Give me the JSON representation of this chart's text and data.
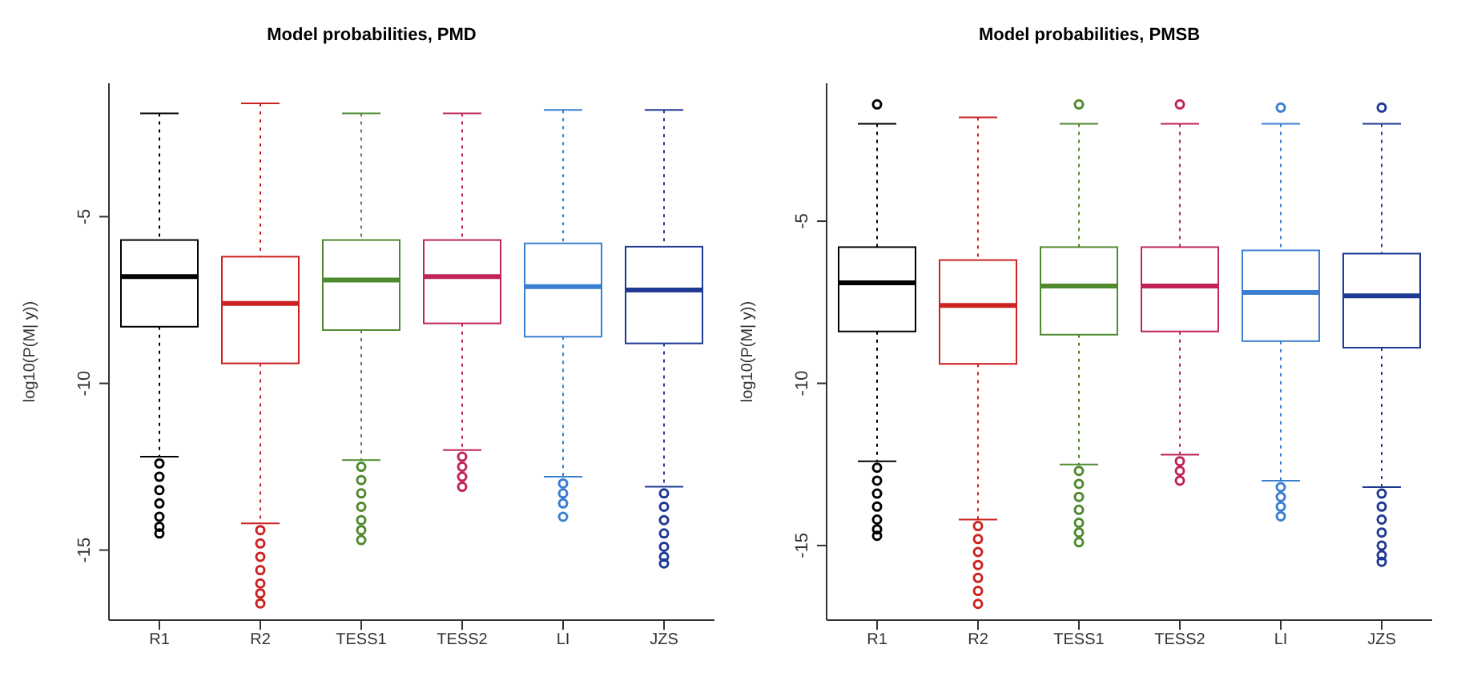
{
  "chart_data": [
    {
      "type": "box",
      "title": "Model probabilities, PMD",
      "ylabel": "log10(P(M| y))",
      "categories": [
        "R1",
        "R2",
        "TESS1",
        "TESS2",
        "LI",
        "JZS"
      ],
      "colors": [
        "#000000",
        "#cc2222",
        "#4f8a2f",
        "#c0245a",
        "#3a7fd0",
        "#1f3a93"
      ],
      "ylim": [
        -17.1,
        -1.0
      ],
      "yticks": [
        -15,
        -10,
        -5
      ],
      "boxes": [
        {
          "low": -1.9,
          "q1": -8.3,
          "median": -6.8,
          "q3": -5.7,
          "high": -12.2,
          "outliers": [
            -12.4,
            -12.8,
            -13.2,
            -13.6,
            -14.0,
            -14.3,
            -14.5
          ]
        },
        {
          "low": -1.6,
          "q1": -9.4,
          "median": -7.6,
          "q3": -6.2,
          "high": -14.2,
          "outliers": [
            -14.4,
            -14.8,
            -15.2,
            -15.6,
            -16.0,
            -16.3,
            -16.6
          ]
        },
        {
          "low": -1.9,
          "q1": -8.4,
          "median": -6.9,
          "q3": -5.7,
          "high": -12.3,
          "outliers": [
            -12.5,
            -12.9,
            -13.3,
            -13.7,
            -14.1,
            -14.4,
            -14.7
          ]
        },
        {
          "low": -1.9,
          "q1": -8.2,
          "median": -6.8,
          "q3": -5.7,
          "high": -12.0,
          "outliers": [
            -12.2,
            -12.5,
            -12.8,
            -13.1
          ]
        },
        {
          "low": -1.8,
          "q1": -8.6,
          "median": -7.1,
          "q3": -5.8,
          "high": -12.8,
          "outliers": [
            -13.0,
            -13.3,
            -13.6,
            -14.0
          ]
        },
        {
          "low": -1.8,
          "q1": -8.8,
          "median": -7.2,
          "q3": -5.9,
          "high": -13.1,
          "outliers": [
            -13.3,
            -13.7,
            -14.1,
            -14.5,
            -14.9,
            -15.2,
            -15.4
          ]
        }
      ]
    },
    {
      "type": "box",
      "title": "Model probabilities, PMSB",
      "ylabel": "log10(P(M| y))",
      "categories": [
        "R1",
        "R2",
        "TESS1",
        "TESS2",
        "LI",
        "JZS"
      ],
      "colors": [
        "#000000",
        "#cc2222",
        "#4f8a2f",
        "#c0245a",
        "#3a7fd0",
        "#1f3a93"
      ],
      "ylim": [
        -17.3,
        -0.75
      ],
      "yticks": [
        -15,
        -10,
        -5
      ],
      "boxes": [
        {
          "low": -2.0,
          "q1": -8.4,
          "median": -6.9,
          "q3": -5.8,
          "high": -12.4,
          "outliers": [
            -1.4,
            -12.6,
            -13.0,
            -13.4,
            -13.8,
            -14.2,
            -14.5,
            -14.7
          ]
        },
        {
          "low": -1.8,
          "q1": -9.4,
          "median": -7.6,
          "q3": -6.2,
          "high": -14.2,
          "outliers": [
            -14.4,
            -14.8,
            -15.2,
            -15.6,
            -16.0,
            -16.4,
            -16.8
          ]
        },
        {
          "low": -2.0,
          "q1": -8.5,
          "median": -7.0,
          "q3": -5.8,
          "high": -12.5,
          "outliers": [
            -1.4,
            -12.7,
            -13.1,
            -13.5,
            -13.9,
            -14.3,
            -14.6,
            -14.9
          ]
        },
        {
          "low": -2.0,
          "q1": -8.4,
          "median": -7.0,
          "q3": -5.8,
          "high": -12.2,
          "outliers": [
            -1.4,
            -12.4,
            -12.7,
            -13.0
          ]
        },
        {
          "low": -2.0,
          "q1": -8.7,
          "median": -7.2,
          "q3": -5.9,
          "high": -13.0,
          "outliers": [
            -1.5,
            -13.2,
            -13.5,
            -13.8,
            -14.1
          ]
        },
        {
          "low": -2.0,
          "q1": -8.9,
          "median": -7.3,
          "q3": -6.0,
          "high": -13.2,
          "outliers": [
            -1.5,
            -13.4,
            -13.8,
            -14.2,
            -14.6,
            -15.0,
            -15.3,
            -15.5
          ]
        }
      ]
    }
  ]
}
